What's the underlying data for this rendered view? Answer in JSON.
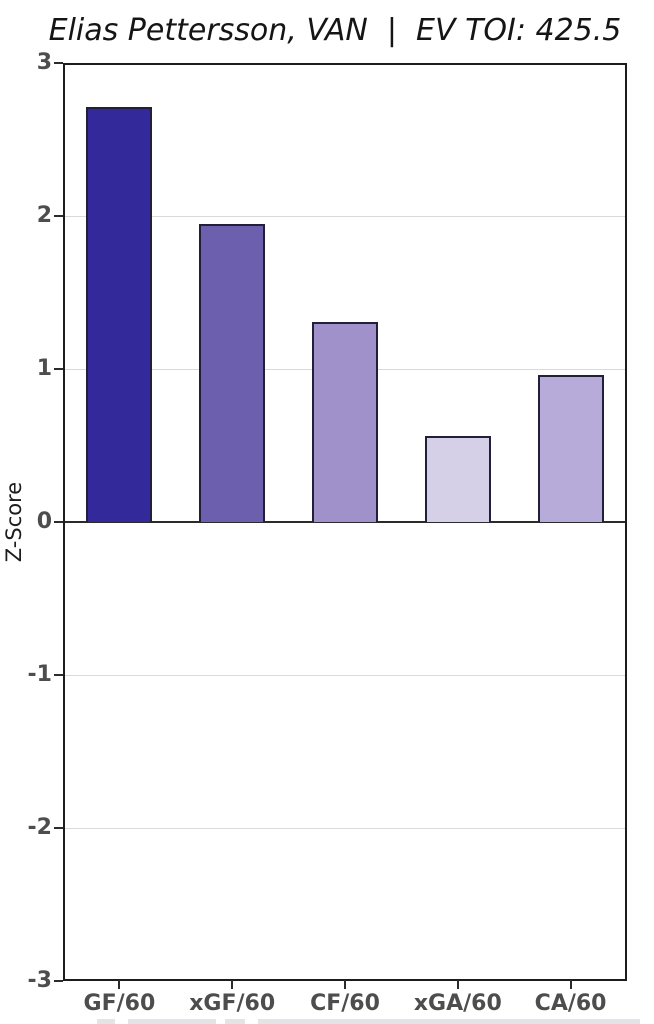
{
  "header": {
    "title": "Elias Pettersson, VAN  |  EV TOI: 425.5",
    "player_name": "Elias Pettersson",
    "team": "VAN",
    "ev_toi": "425.5"
  },
  "chart_data": {
    "type": "bar",
    "title": "Elias Pettersson, VAN  |  EV TOI: 425.5",
    "categories": [
      "GF/60",
      "xGF/60",
      "CF/60",
      "xGA/60",
      "CA/60"
    ],
    "values": [
      2.71,
      1.95,
      1.31,
      0.56,
      0.96
    ],
    "bar_colors": [
      "#34299a",
      "#6c60ae",
      "#a091cb",
      "#d6cfe8",
      "#b7abd9"
    ],
    "bar_edge_color": "#221f3a",
    "xlabel": "",
    "ylabel": "Z-Score",
    "ylim": [
      -3,
      3
    ],
    "yticks": [
      3,
      2,
      1,
      0,
      -1,
      -2,
      -3
    ],
    "gridline_values": [
      2,
      1,
      -1,
      -2
    ],
    "zero_line": true,
    "grid": true,
    "legend": "none"
  },
  "colors": {
    "axis_spine": "#1c1c1c",
    "tick_label": "#4d4d4d",
    "gridline": "#d9d9d9",
    "zero_line": "#2b2b2b",
    "title_text": "#151515",
    "background": "#ffffff"
  }
}
